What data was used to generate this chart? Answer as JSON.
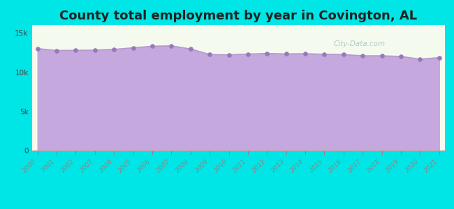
{
  "title": "County total employment by year in Covington, AL",
  "years": [
    2000,
    2001,
    2002,
    2003,
    2004,
    2005,
    2006,
    2007,
    2008,
    2009,
    2010,
    2011,
    2012,
    2013,
    2014,
    2015,
    2016,
    2017,
    2018,
    2019,
    2020,
    2021
  ],
  "values": [
    13000,
    12750,
    12780,
    12800,
    12900,
    13100,
    13300,
    13350,
    12950,
    12250,
    12200,
    12300,
    12380,
    12320,
    12350,
    12280,
    12230,
    12080,
    12080,
    12000,
    11650,
    11850
  ],
  "line_color": "#b399cc",
  "fill_color": "#c4a8de",
  "fill_alpha": 1.0,
  "marker_color": "#9977bb",
  "marker_size": 14,
  "bg_color": "#00e5e5",
  "plot_bg_color": "#f5faee",
  "title_fontsize": 13,
  "title_color": "#222222",
  "yticks": [
    0,
    5000,
    10000,
    15000
  ],
  "ylim": [
    0,
    16000
  ],
  "watermark": "City-Data.com"
}
